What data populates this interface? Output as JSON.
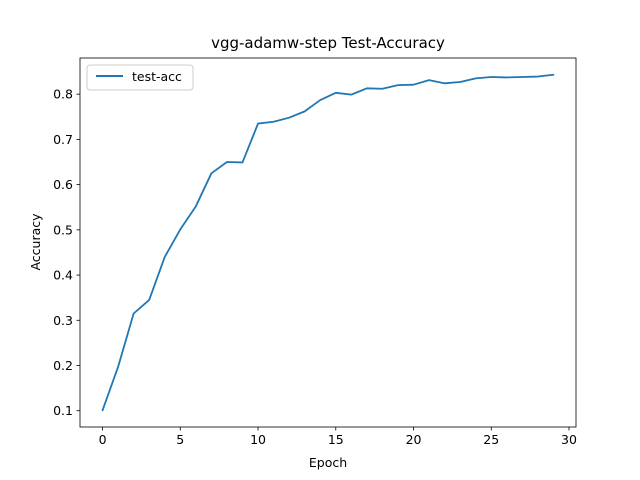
{
  "chart_data": {
    "type": "line",
    "title": "vgg-adamw-step  Test-Accuracy",
    "xlabel": "Epoch",
    "ylabel": "Accuracy",
    "xlim": [
      -1.45,
      30.45
    ],
    "ylim": [
      0.064,
      0.88
    ],
    "xticks": [
      0,
      5,
      10,
      15,
      20,
      25,
      30
    ],
    "yticks": [
      0.1,
      0.2,
      0.3,
      0.4,
      0.5,
      0.6,
      0.7,
      0.8
    ],
    "xtick_labels": [
      "0",
      "5",
      "10",
      "15",
      "20",
      "25",
      "30"
    ],
    "ytick_labels": [
      "0.1",
      "0.2",
      "0.3",
      "0.4",
      "0.5",
      "0.6",
      "0.7",
      "0.8"
    ],
    "grid": false,
    "legend_position": "top-left",
    "series": [
      {
        "name": "test-acc",
        "color": "#1f77b4",
        "x": [
          0,
          1,
          2,
          3,
          4,
          5,
          6,
          7,
          8,
          9,
          10,
          11,
          12,
          13,
          14,
          15,
          16,
          17,
          18,
          19,
          20,
          21,
          22,
          23,
          24,
          25,
          26,
          27,
          28,
          29
        ],
        "y": [
          0.101,
          0.197,
          0.315,
          0.345,
          0.44,
          0.501,
          0.552,
          0.625,
          0.65,
          0.649,
          0.735,
          0.739,
          0.748,
          0.762,
          0.787,
          0.803,
          0.799,
          0.813,
          0.812,
          0.82,
          0.821,
          0.831,
          0.824,
          0.827,
          0.835,
          0.838,
          0.837,
          0.838,
          0.839,
          0.843
        ]
      }
    ]
  }
}
